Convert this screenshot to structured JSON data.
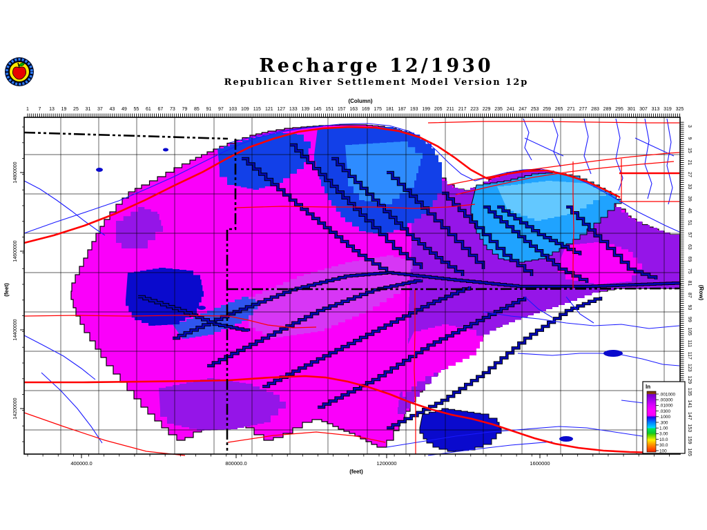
{
  "header": {
    "title": "Recharge 12/1930",
    "subtitle": "Republican River Settlement Model Version 12p"
  },
  "axes": {
    "column": {
      "label": "(Column)",
      "start": 1,
      "step": 6,
      "end": 325
    },
    "row": {
      "label": "(Row)",
      "start": 3,
      "step": 6,
      "end": 165
    },
    "left": {
      "label": "(feet)",
      "ticks": [
        "14800000",
        "14600000",
        "14400000",
        "14200000"
      ]
    },
    "bottom": {
      "label": "(feet)",
      "ticks": [
        "400000.0",
        "800000.0",
        "1200000",
        "1600000"
      ]
    }
  },
  "legend": {
    "title": "In",
    "entries": [
      ".001000",
      ".00300",
      ".01000",
      ".0300",
      ".1000",
      ".300",
      "1.00",
      "3.00",
      "10.0",
      "30.0",
      "100"
    ],
    "gradient": [
      {
        "stop": 0.0,
        "color": "#6B3200"
      },
      {
        "stop": 0.04,
        "color": "#8A4500"
      },
      {
        "stop": 0.05,
        "color": "#7300C8"
      },
      {
        "stop": 0.13,
        "color": "#9E00E8"
      },
      {
        "stop": 0.23,
        "color": "#DC00FF"
      },
      {
        "stop": 0.32,
        "color": "#FF00FF"
      },
      {
        "stop": 0.4,
        "color": "#FB00F2"
      },
      {
        "stop": 0.425,
        "color": "#1E00F0"
      },
      {
        "stop": 0.5,
        "color": "#0070FF"
      },
      {
        "stop": 0.6,
        "color": "#00D8FF"
      },
      {
        "stop": 0.615,
        "color": "#00E858"
      },
      {
        "stop": 0.69,
        "color": "#10C82E"
      },
      {
        "stop": 0.71,
        "color": "#3FD200"
      },
      {
        "stop": 0.78,
        "color": "#CFE800"
      },
      {
        "stop": 0.8,
        "color": "#FFF200"
      },
      {
        "stop": 0.88,
        "color": "#FF9400"
      },
      {
        "stop": 0.97,
        "color": "#FF3A00"
      },
      {
        "stop": 1.0,
        "color": "#FF2600"
      }
    ]
  },
  "palette": {
    "magenta": "#FA00FA",
    "violet_e": "#9515E8",
    "violet_c": "#B36BF0",
    "blue_big": "#1240E8",
    "blue_inner": "#2E8CFF",
    "blue_dark": "#0A0ACD",
    "blue_med": "#2F55EE",
    "cyan_mid": "#1FA3FF",
    "cyan_light": "#63C8FF",
    "stream": "#0008B8",
    "river": "#1A1AFF",
    "road": "#FF0000",
    "grid": "#000000",
    "frame": "#000000",
    "logo_ring": "#2E7DFF",
    "logo_bg": "#FFE800",
    "logo_apple": "#E80000",
    "logo_leaf": "#00B400"
  }
}
